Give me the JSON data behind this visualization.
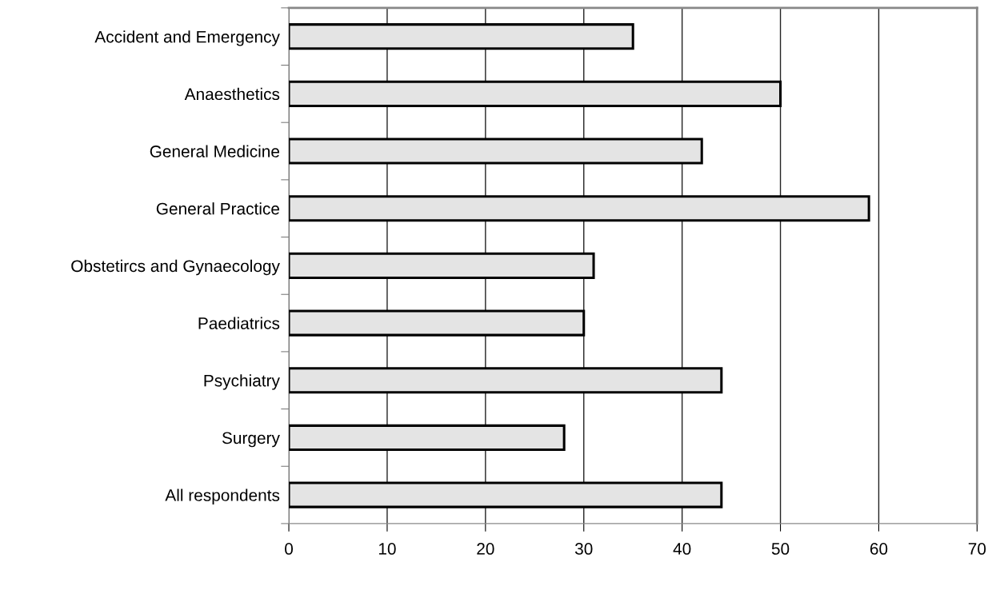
{
  "chart_data": {
    "type": "bar",
    "orientation": "horizontal",
    "categories": [
      "Accident and Emergency",
      "Anaesthetics",
      "General Medicine",
      "General Practice",
      "Obstetircs and Gynaecology",
      "Paediatrics",
      "Psychiatry",
      "Surgery",
      "All respondents"
    ],
    "values": [
      35,
      50,
      42,
      59,
      31,
      30,
      44,
      28,
      44
    ],
    "color": "#e4e4e4",
    "xlim": [
      0,
      70
    ],
    "xticks": [
      0,
      10,
      20,
      30,
      40,
      50,
      60,
      70
    ],
    "grid": "x"
  }
}
